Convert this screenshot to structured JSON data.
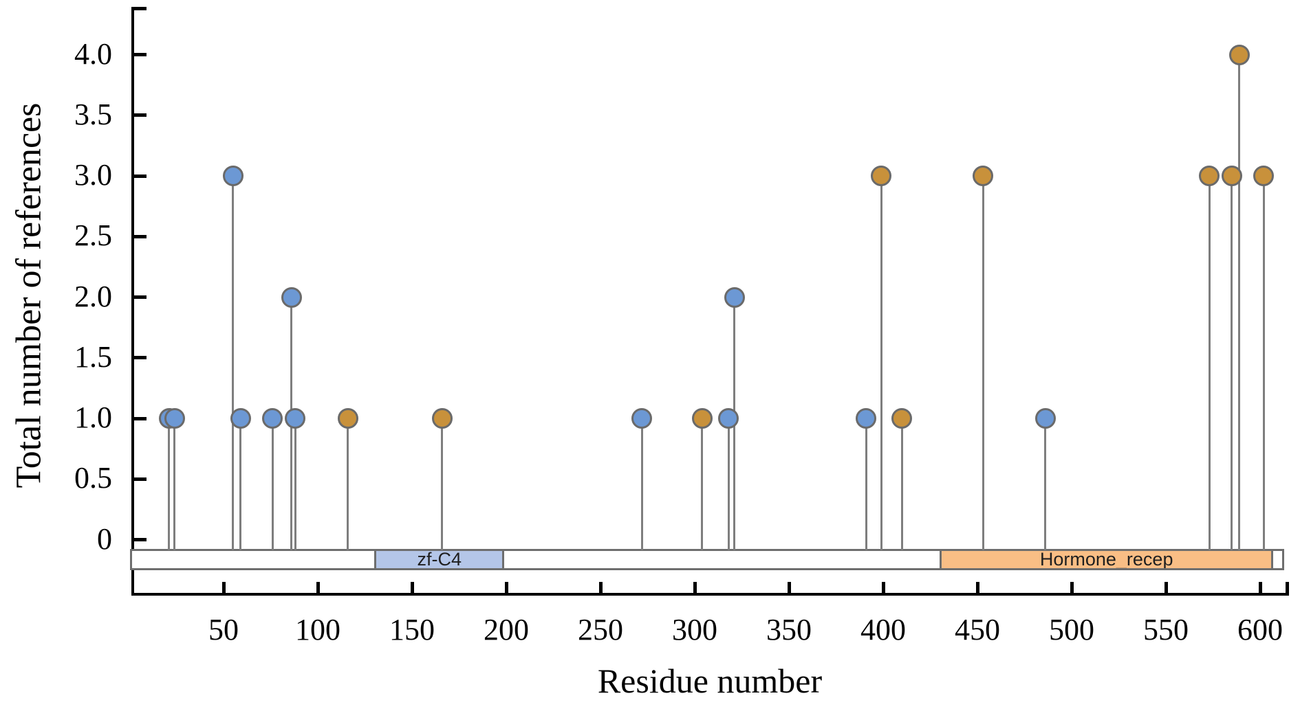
{
  "chart_data": {
    "type": "scatter",
    "variant": "lollipop",
    "title": "",
    "xlabel": "Residue number",
    "ylabel": "Total number of references",
    "x_axis": {
      "range": [
        0,
        614
      ],
      "tick_values": [
        50,
        100,
        150,
        200,
        250,
        300,
        350,
        400,
        450,
        500,
        550,
        600
      ]
    },
    "y_axis": {
      "range": [
        0,
        4.4
      ],
      "tick_values": [
        0,
        0.5,
        1,
        1.5,
        2,
        2.5,
        3,
        3.5,
        4
      ],
      "tick_labels": [
        "0",
        "0.5",
        "1.0",
        "1.5",
        "2.0",
        "2.5",
        "3.0",
        "3.5",
        "4.0"
      ]
    },
    "grid": false,
    "legend": false,
    "groups": {
      "blue": {
        "color": "#6C98D4"
      },
      "orange": {
        "color": "#C8913B"
      }
    },
    "points": [
      {
        "residue": 21,
        "references": 1,
        "group": "blue"
      },
      {
        "residue": 24,
        "references": 1,
        "group": "blue"
      },
      {
        "residue": 55,
        "references": 3,
        "group": "blue"
      },
      {
        "residue": 59,
        "references": 1,
        "group": "blue"
      },
      {
        "residue": 76,
        "references": 1,
        "group": "blue"
      },
      {
        "residue": 86,
        "references": 2,
        "group": "blue"
      },
      {
        "residue": 88,
        "references": 1,
        "group": "blue"
      },
      {
        "residue": 116,
        "references": 1,
        "group": "orange"
      },
      {
        "residue": 166,
        "references": 1,
        "group": "orange"
      },
      {
        "residue": 272,
        "references": 1,
        "group": "blue"
      },
      {
        "residue": 304,
        "references": 1,
        "group": "orange"
      },
      {
        "residue": 318,
        "references": 1,
        "group": "blue"
      },
      {
        "residue": 321,
        "references": 2,
        "group": "blue"
      },
      {
        "residue": 391,
        "references": 1,
        "group": "blue"
      },
      {
        "residue": 399,
        "references": 3,
        "group": "orange"
      },
      {
        "residue": 410,
        "references": 1,
        "group": "orange"
      },
      {
        "residue": 453,
        "references": 3,
        "group": "orange"
      },
      {
        "residue": 486,
        "references": 1,
        "group": "blue"
      },
      {
        "residue": 573,
        "references": 3,
        "group": "orange"
      },
      {
        "residue": 585,
        "references": 3,
        "group": "orange"
      },
      {
        "residue": 589,
        "references": 4,
        "group": "orange"
      },
      {
        "residue": 602,
        "references": 3,
        "group": "orange"
      }
    ],
    "protein_bar": {
      "start": 1,
      "end": 612,
      "fill": "#ffffff",
      "border": "#6E6E6E"
    },
    "domains": [
      {
        "label": "zf-C4",
        "start": 130,
        "end": 199,
        "color": "#B4C6E8"
      },
      {
        "label": "Hormone_recep",
        "start": 430,
        "end": 607,
        "color": "#F9BE85"
      }
    ],
    "stem_color": "#7E7E7E",
    "marker_outline": "#6A6A6A",
    "axis_color": "#000000"
  }
}
